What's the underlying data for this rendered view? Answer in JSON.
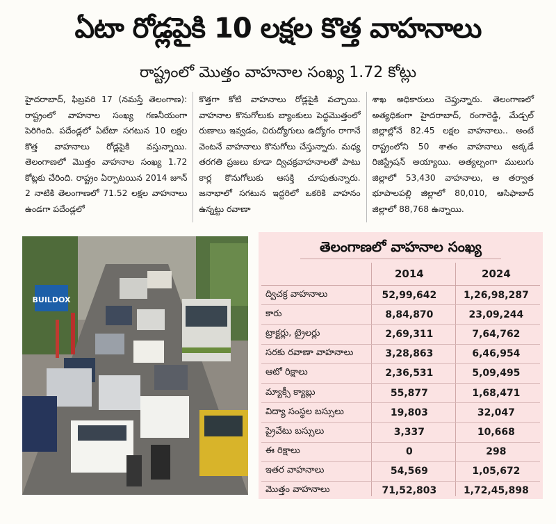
{
  "headline": "ఏటా రోడ్లపైకి 10 లక్షల కొత్త వాహనాలు",
  "subheadline": "రాష్ట్రంలో మొత్తం వాహనాల సంఖ్య 1.72 కోట్లు",
  "article": {
    "columns": [
      "హైదరాబాద్, ఫిబ్రవరి 17 (నమస్తే తెలంగాణ): రాష్ట్రంలో వాహనాల సంఖ్య గణనీయంగా పెరిగింది. పదేండ్లలో ఏటేటా సగటున 10 లక్షల కొత్త వాహనాలు రోడ్లపైకి వస్తున్నాయి. తెలంగాణలో మొత్తం వాహనాల సంఖ్య 1.72 కోట్లకు చేరింది. రాష్ట్రం ఏర్పాటయిన 2014 జూన్ 2 నాటికి తెలంగాణలో 71.52 లక్షల వాహనాలు ఉండగా పదేండ్లలో",
      "కొత్తగా కోటి వాహనాలు రోడ్లపైకి వచ్చాయి. వాహనాల కొనుగోలుకు బ్యాంకులు పెద్దమొత్తంలో రుణాలు ఇవ్వడం, చిరుద్యోగులు ఉద్యోగం రాగానే వెంటనే వాహనాలు కొనుగోలు చేస్తున్నారు. మధ్య తరగతి ప్రజలు కూడా ద్విచక్రవాహనాలతో పాటు కార్ల కొనుగోలుకు ఆసక్తి చూపుతున్నారు. జనాభాలో సగటున ఇద్దరిలో ఒకరికి వాహనం ఉన్నట్టు రవాణా",
      "శాఖ అధికారులు చెప్తున్నారు. తెలంగాణలో అత్యధికంగా హైదరాబాద్, రంగారెడ్డి, మేడ్చల్ జిల్లాల్లోనే 82.45 లక్షల వాహనాలు.. అంటే రాష్ట్రంలోని 50 శాతం వాహనాలు అక్కడే రిజిస్ట్రేషన్ అయ్యాయి. అత్యల్పంగా ములుగు జిల్లాలో 53,430 వాహనాలు, ఆ తర్వాత భూపాలపల్లి జిల్లాలో 80,010, ఆసిఫాబాద్ జిల్లాలో 88,768 ఉన్నాయి."
    ]
  },
  "photo": {
    "billboard_text": "BUILDOX"
  },
  "table": {
    "title": "తెలంగాణలో వాహనాల సంఖ్య",
    "headers": [
      "",
      "2014",
      "2024"
    ],
    "rows": [
      {
        "label": "ద్విచక్ర వాహనాలు",
        "y2014": "52,99,642",
        "y2024": "1,26,98,287"
      },
      {
        "label": "కారు",
        "y2014": "8,84,870",
        "y2024": "23,09,244"
      },
      {
        "label": "ట్రాక్టర్లు, ట్రైలర్లు",
        "y2014": "2,69,311",
        "y2024": "7,64,762"
      },
      {
        "label": "సరకు రవాణా వాహనాలు",
        "y2014": "3,28,863",
        "y2024": "6,46,954"
      },
      {
        "label": "ఆటో రిక్షాలు",
        "y2014": "2,36,531",
        "y2024": "5,09,495"
      },
      {
        "label": "మ్యాక్సీ క్యాబ్లు",
        "y2014": "55,877",
        "y2024": "1,68,471"
      },
      {
        "label": "విద్యా సంస్థల బస్సులు",
        "y2014": "19,803",
        "y2024": "32,047"
      },
      {
        "label": "ప్రైవేటు బస్సులు",
        "y2014": "3,337",
        "y2024": "10,668"
      },
      {
        "label": "ఈ రిక్షాలు",
        "y2014": "0",
        "y2024": "298"
      },
      {
        "label": "ఇతర వాహనాలు",
        "y2014": "54,569",
        "y2024": "1,05,672"
      },
      {
        "label": "మొత్తం వాహనాలు",
        "y2014": "71,52,803",
        "y2024": "1,72,45,898"
      }
    ]
  },
  "colors": {
    "panel_background": "#fbe3e3",
    "billboard_blue": "#1d5fa8"
  }
}
